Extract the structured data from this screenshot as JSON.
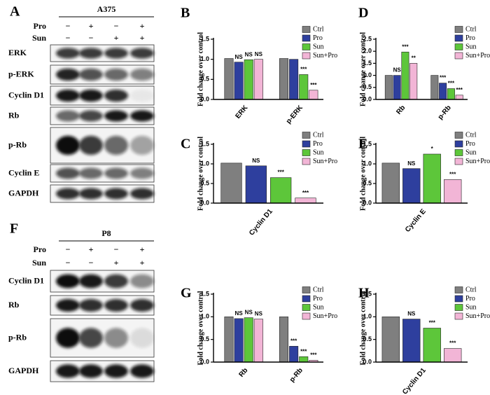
{
  "blots": [
    {
      "panel": "A",
      "cell_line": "A375",
      "treatments": [
        {
          "name": "Pro",
          "signs": [
            "−",
            "+",
            "−",
            "+"
          ]
        },
        {
          "name": "Sun",
          "signs": [
            "−",
            "−",
            "+",
            "+"
          ]
        }
      ],
      "bands": [
        "ERK",
        "p-ERK",
        "Cyclin D1",
        "Rb",
        "p-Rb",
        "Cyclin E",
        "GAPDH"
      ]
    },
    {
      "panel": "F",
      "cell_line": "P8",
      "treatments": [
        {
          "name": "Pro",
          "signs": [
            "−",
            "+",
            "−",
            "+"
          ]
        },
        {
          "name": "Sun",
          "signs": [
            "−",
            "−",
            "+",
            "+"
          ]
        }
      ],
      "bands": [
        "Cyclin D1",
        "Rb",
        "p-Rb",
        "GAPDH"
      ]
    }
  ],
  "chart_data": [
    {
      "type": "bar",
      "panel": "B",
      "y_label": "Fold change over control",
      "categories": [
        "ERK",
        "p-ERK"
      ],
      "ylim": [
        0,
        1.5
      ],
      "yticks": [
        {
          "value": 0,
          "label": "0.0"
        },
        0.5,
        {
          "value": 1,
          "label": "1.0"
        },
        1.5
      ],
      "legend": "upper right",
      "series": [
        {
          "name": "Ctrl",
          "color": "#7f7f7f",
          "values": [
            1.02,
            1.02
          ]
        },
        {
          "name": "Pro",
          "color": "#2e3f9e",
          "values": [
            0.93,
            1.0
          ],
          "annotations": [
            "NS",
            null
          ]
        },
        {
          "name": "Sun",
          "color": "#5dc63a",
          "values": [
            0.99,
            0.62
          ],
          "annotations": [
            "NS",
            "***"
          ]
        },
        {
          "name": "Sun+Pro",
          "color": "#f2b5d6",
          "values": [
            1.0,
            0.23
          ],
          "annotations": [
            "NS",
            "***"
          ]
        }
      ]
    },
    {
      "type": "bar",
      "panel": "D",
      "y_label": "Fold change over control",
      "categories": [
        "Rb",
        "p-Rb"
      ],
      "ylim": [
        0,
        2.5
      ],
      "yticks": [
        {
          "value": 0,
          "label": "0.0"
        },
        0.5,
        {
          "value": 1,
          "label": "1.0"
        },
        1.5,
        {
          "value": 2,
          "label": "2.0"
        },
        2.5
      ],
      "legend": "upper right",
      "series": [
        {
          "name": "Ctrl",
          "color": "#7f7f7f",
          "values": [
            1.0,
            1.0
          ]
        },
        {
          "name": "Pro",
          "color": "#2e3f9e",
          "values": [
            1.0,
            0.68
          ],
          "annotations": [
            "NS",
            "***"
          ]
        },
        {
          "name": "Sun",
          "color": "#5dc63a",
          "values": [
            1.97,
            0.45
          ],
          "annotations": [
            "***",
            "***"
          ]
        },
        {
          "name": "Sun+Pro",
          "color": "#f2b5d6",
          "values": [
            1.5,
            0.18
          ],
          "annotations": [
            "**",
            "***"
          ]
        }
      ]
    },
    {
      "type": "bar",
      "panel": "C",
      "y_label": "Fold change over control",
      "categories": [
        "Cyclin D1"
      ],
      "ylim": [
        0,
        1.5
      ],
      "yticks": [
        {
          "value": 0,
          "label": "0.0"
        },
        0.5,
        {
          "value": 1,
          "label": "1.0"
        },
        1.5
      ],
      "legend": "upper right",
      "series": [
        {
          "name": "Ctrl",
          "color": "#7f7f7f",
          "values": [
            1.02
          ]
        },
        {
          "name": "Pro",
          "color": "#2e3f9e",
          "values": [
            0.95
          ],
          "annotations": [
            "NS"
          ]
        },
        {
          "name": "Sun",
          "color": "#5dc63a",
          "values": [
            0.65
          ],
          "annotations": [
            "***"
          ]
        },
        {
          "name": "Sun+Pro",
          "color": "#f2b5d6",
          "values": [
            0.13
          ],
          "annotations": [
            "***"
          ]
        }
      ]
    },
    {
      "type": "bar",
      "panel": "E",
      "y_label": "Fold change over control",
      "categories": [
        "Cyclin E"
      ],
      "ylim": [
        0,
        1.5
      ],
      "yticks": [
        {
          "value": 0,
          "label": "0.0"
        },
        0.5,
        {
          "value": 1,
          "label": "1.0"
        },
        1.5
      ],
      "legend": "upper right",
      "series": [
        {
          "name": "Ctrl",
          "color": "#7f7f7f",
          "values": [
            1.02
          ]
        },
        {
          "name": "Pro",
          "color": "#2e3f9e",
          "values": [
            0.88
          ],
          "annotations": [
            "NS"
          ]
        },
        {
          "name": "Sun",
          "color": "#5dc63a",
          "values": [
            1.25
          ],
          "annotations": [
            "*"
          ]
        },
        {
          "name": "Sun+Pro",
          "color": "#f2b5d6",
          "values": [
            0.6
          ],
          "annotations": [
            "***"
          ]
        }
      ]
    },
    {
      "type": "bar",
      "panel": "G",
      "y_label": "Fold change over control",
      "categories": [
        "Rb",
        "p-Rb"
      ],
      "ylim": [
        0,
        1.5
      ],
      "yticks": [
        {
          "value": 0,
          "label": "0.0"
        },
        0.5,
        {
          "value": 1,
          "label": "1.0"
        },
        1.5
      ],
      "legend": "upper right",
      "series": [
        {
          "name": "Ctrl",
          "color": "#7f7f7f",
          "values": [
            1.0,
            1.0
          ]
        },
        {
          "name": "Pro",
          "color": "#2e3f9e",
          "values": [
            0.96,
            0.35
          ],
          "annotations": [
            "NS",
            "***"
          ]
        },
        {
          "name": "Sun",
          "color": "#5dc63a",
          "values": [
            0.98,
            0.12
          ],
          "annotations": [
            "NS",
            "***"
          ]
        },
        {
          "name": "Sun+Pro",
          "color": "#f2b5d6",
          "values": [
            0.95,
            0.04
          ],
          "annotations": [
            "NS",
            "***"
          ]
        }
      ]
    },
    {
      "type": "bar",
      "panel": "H",
      "y_label": "Fold change over control",
      "categories": [
        "Cyclin D1"
      ],
      "ylim": [
        0,
        1.5
      ],
      "yticks": [
        {
          "value": 0,
          "label": "0.0"
        },
        0.5,
        {
          "value": 1,
          "label": "1.0"
        },
        1.5
      ],
      "legend": "upper right",
      "series": [
        {
          "name": "Ctrl",
          "color": "#7f7f7f",
          "values": [
            1.0
          ]
        },
        {
          "name": "Pro",
          "color": "#2e3f9e",
          "values": [
            0.95
          ],
          "annotations": [
            "NS"
          ]
        },
        {
          "name": "Sun",
          "color": "#5dc63a",
          "values": [
            0.75
          ],
          "annotations": [
            "***"
          ]
        },
        {
          "name": "Sun+Pro",
          "color": "#f2b5d6",
          "values": [
            0.3
          ],
          "annotations": [
            "***"
          ]
        }
      ]
    }
  ]
}
